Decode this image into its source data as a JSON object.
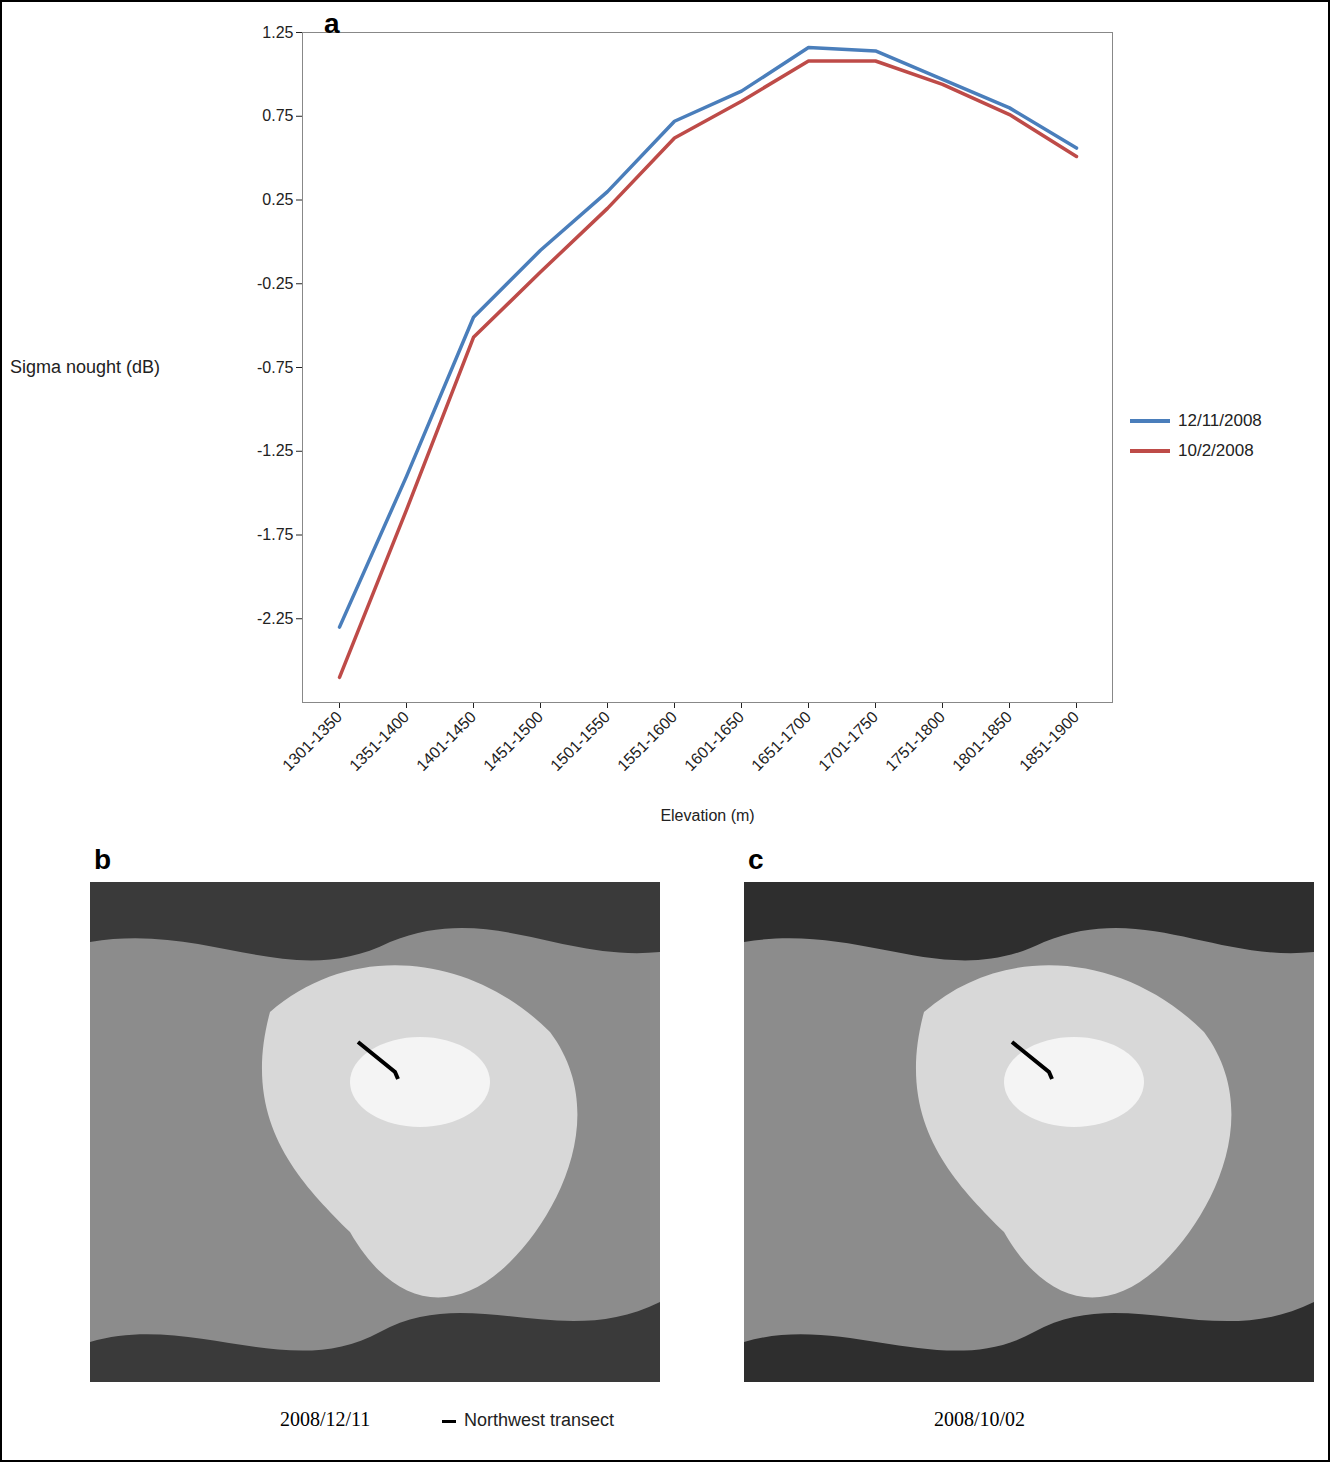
{
  "chart_data": {
    "type": "line",
    "panel": "a",
    "xlabel": "Elevation (m)",
    "ylabel": "Sigma nought (dB)",
    "categories": [
      "1301-1350",
      "1351-1400",
      "1401-1450",
      "1451-1500",
      "1501-1550",
      "1551-1600",
      "1601-1650",
      "1651-1700",
      "1701-1750",
      "1751-1800",
      "1801-1850",
      "1851-1900"
    ],
    "series": [
      {
        "name": "12/11/2008",
        "color": "#4a7ebb",
        "values": [
          -2.3,
          -1.4,
          -0.45,
          -0.05,
          0.3,
          0.72,
          0.9,
          1.16,
          1.14,
          0.97,
          0.8,
          0.56
        ]
      },
      {
        "name": "10/2/2008",
        "color": "#be4b48",
        "values": [
          -2.6,
          -1.6,
          -0.57,
          -0.18,
          0.2,
          0.62,
          0.84,
          1.08,
          1.08,
          0.94,
          0.76,
          0.51
        ]
      }
    ],
    "ylim": [
      -2.75,
      1.25
    ],
    "yticks": [
      -2.25,
      -1.75,
      -1.25,
      -0.75,
      -0.25,
      0.25,
      0.75,
      1.25
    ],
    "grid": false,
    "legend": "right"
  },
  "images": [
    {
      "panel": "b",
      "caption": "2008/12/11"
    },
    {
      "panel": "c",
      "caption": "2008/10/02"
    }
  ],
  "image_legend": "Northwest transect"
}
